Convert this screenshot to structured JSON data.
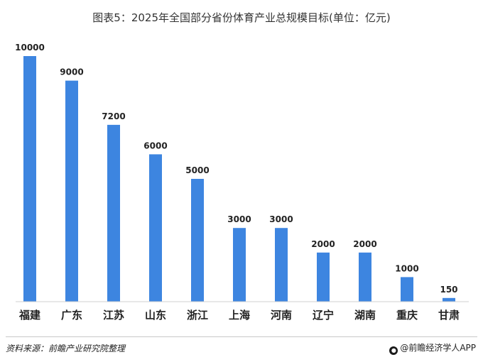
{
  "chart_data": {
    "type": "bar",
    "title": "图表5：2025年全国部分省份体育产业总规模目标(单位：亿元)",
    "categories": [
      "福建",
      "广东",
      "江苏",
      "山东",
      "浙江",
      "上海",
      "河南",
      "辽宁",
      "湖南",
      "重庆",
      "甘肃"
    ],
    "values": [
      10000,
      9000,
      7200,
      6000,
      5000,
      3000,
      3000,
      2000,
      2000,
      1000,
      150
    ],
    "ylim": [
      0,
      10000
    ],
    "grid": false,
    "bar_color": "#3d85e0",
    "data_labels": true
  },
  "source": "资料来源：前瞻产业研究院整理",
  "brand": {
    "icon": "qianzhan-logo-icon",
    "text": "@前瞻经济学人APP"
  }
}
